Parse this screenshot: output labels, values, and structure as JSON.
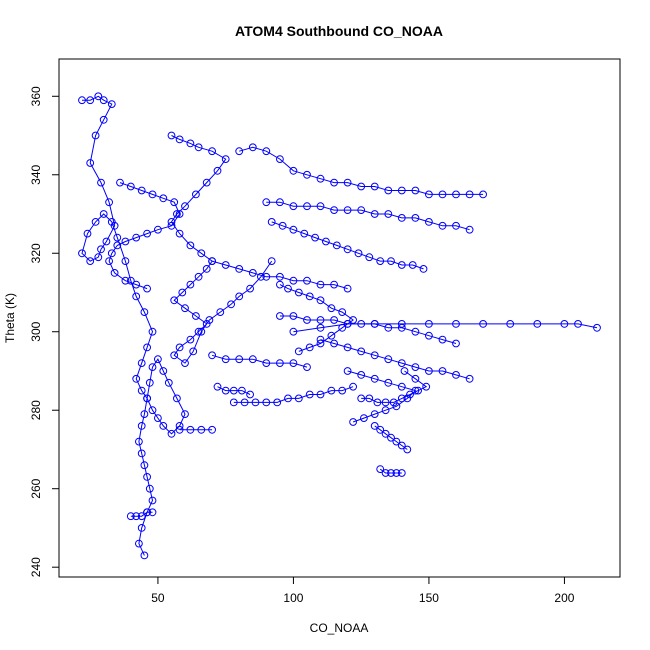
{
  "chart_data": {
    "type": "scatter",
    "title": "ATOM4 Southbound CO_NOAA",
    "xlabel": "CO_NOAA",
    "ylabel": "Theta (K)",
    "xlim": [
      13.5,
      220.5
    ],
    "ylim": [
      237.5,
      369.5
    ],
    "xticks": [
      50,
      100,
      150,
      200
    ],
    "yticks": [
      240,
      260,
      280,
      300,
      320,
      340,
      360
    ],
    "grid": false,
    "legend": "none",
    "marker": "open-circle",
    "lines": true,
    "color": "#0000ff",
    "series": [
      {
        "x": [
          22,
          25,
          28,
          30,
          33,
          30,
          27,
          25,
          29,
          32,
          34,
          31,
          29,
          28,
          25,
          22,
          24,
          27,
          30,
          33,
          35,
          38,
          40,
          42,
          45,
          48,
          46,
          44,
          42,
          44,
          46,
          48,
          50,
          52,
          55,
          58,
          60,
          57,
          54,
          52,
          50,
          48,
          47,
          46,
          45,
          44,
          43,
          44,
          45,
          46,
          47,
          48,
          46,
          44,
          43,
          45
        ],
        "y": [
          359,
          359,
          360,
          359,
          358,
          354,
          350,
          343,
          338,
          333,
          327,
          323,
          321,
          319,
          318,
          320,
          325,
          328,
          330,
          328,
          324,
          318,
          313,
          309,
          305,
          300,
          296,
          292,
          288,
          285,
          283,
          280,
          278,
          276,
          274,
          276,
          279,
          283,
          287,
          290,
          293,
          291,
          287,
          283,
          279,
          276,
          272,
          269,
          266,
          263,
          260,
          257,
          254,
          250,
          246,
          243
        ]
      },
      {
        "x": [
          55,
          58,
          62,
          65,
          70,
          75,
          72,
          68,
          64,
          60,
          57,
          55,
          58,
          62,
          66,
          70,
          68,
          65,
          62,
          59,
          56,
          60,
          64,
          68,
          65,
          62,
          58,
          56,
          60,
          63,
          66,
          69,
          73,
          77,
          80,
          84,
          88,
          92
        ],
        "y": [
          350,
          349,
          348,
          347,
          346,
          344,
          341,
          338,
          335,
          332,
          330,
          328,
          325,
          322,
          320,
          318,
          316,
          314,
          312,
          310,
          308,
          306,
          304,
          302,
          300,
          298,
          296,
          294,
          292,
          295,
          300,
          303,
          305,
          307,
          309,
          311,
          314,
          318
        ]
      },
      {
        "x": [
          36,
          40,
          44,
          48,
          52,
          56,
          58,
          55,
          50,
          46,
          42,
          38,
          35,
          33,
          32,
          34,
          38,
          42,
          46
        ],
        "y": [
          338,
          337,
          336,
          335,
          334,
          333,
          330,
          327,
          326,
          325,
          324,
          323,
          322,
          320,
          318,
          315,
          313,
          312,
          311
        ]
      },
      {
        "x": [
          80,
          85,
          90,
          95,
          100,
          105,
          110,
          115,
          120,
          125,
          130,
          135,
          140,
          145,
          150,
          155,
          160,
          165,
          170
        ],
        "y": [
          346,
          347,
          346,
          344,
          341,
          340,
          339,
          338,
          338,
          337,
          337,
          336,
          336,
          336,
          335,
          335,
          335,
          335,
          335
        ]
      },
      {
        "x": [
          90,
          95,
          100,
          105,
          110,
          115,
          120,
          125,
          130,
          135,
          140,
          145,
          150,
          155,
          160,
          165
        ],
        "y": [
          333,
          333,
          332,
          332,
          332,
          331,
          331,
          331,
          330,
          330,
          329,
          329,
          328,
          327,
          327,
          326
        ]
      },
      {
        "x": [
          92,
          96,
          100,
          104,
          108,
          112,
          116,
          120,
          124,
          128,
          132,
          136,
          140,
          144,
          148
        ],
        "y": [
          328,
          327,
          326,
          325,
          324,
          323,
          322,
          321,
          320,
          319,
          318,
          318,
          317,
          317,
          316
        ]
      },
      {
        "x": [
          95,
          98,
          102,
          106,
          110,
          114,
          118,
          122,
          118,
          114,
          110,
          106,
          102
        ],
        "y": [
          312,
          311,
          310,
          309,
          308,
          306,
          305,
          303,
          301,
          299,
          297,
          296,
          295
        ]
      },
      {
        "x": [
          100,
          110,
          120,
          130,
          140,
          150,
          160,
          170,
          180,
          190,
          200,
          205,
          212
        ],
        "y": [
          300,
          301,
          302,
          302,
          302,
          302,
          302,
          302,
          302,
          302,
          302,
          302,
          301
        ]
      },
      {
        "x": [
          95,
          100,
          105,
          110,
          115,
          120,
          125,
          130,
          135,
          140,
          145,
          150,
          155,
          160
        ],
        "y": [
          304,
          304,
          303,
          303,
          303,
          302,
          302,
          302,
          301,
          301,
          300,
          299,
          298,
          297
        ]
      },
      {
        "x": [
          110,
          115,
          120,
          125,
          130,
          135,
          140,
          145,
          150,
          155,
          160,
          165
        ],
        "y": [
          298,
          297,
          296,
          295,
          294,
          293,
          292,
          291,
          290,
          290,
          289,
          288
        ]
      },
      {
        "x": [
          120,
          125,
          130,
          135,
          140,
          145,
          142,
          138,
          134,
          130,
          126,
          122
        ],
        "y": [
          290,
          289,
          288,
          287,
          286,
          285,
          283,
          281,
          280,
          279,
          278,
          277
        ]
      },
      {
        "x": [
          125,
          128,
          131,
          134,
          137,
          140,
          143,
          146,
          149,
          145,
          141
        ],
        "y": [
          283,
          283,
          282,
          282,
          282,
          283,
          284,
          285,
          286,
          288,
          290
        ]
      },
      {
        "x": [
          130,
          132,
          134,
          136,
          138,
          140,
          142
        ],
        "y": [
          276,
          275,
          274,
          273,
          272,
          271,
          270
        ]
      },
      {
        "x": [
          132,
          134,
          136,
          138,
          140
        ],
        "y": [
          265,
          264,
          264,
          264,
          264
        ]
      },
      {
        "x": [
          78,
          82,
          86,
          90,
          94,
          98,
          102,
          106,
          110,
          114,
          118,
          122
        ],
        "y": [
          282,
          282,
          282,
          282,
          282,
          283,
          283,
          284,
          284,
          285,
          285,
          286
        ]
      },
      {
        "x": [
          70,
          75,
          80,
          85,
          90,
          95,
          100,
          105
        ],
        "y": [
          294,
          293,
          293,
          293,
          292,
          292,
          292,
          291
        ]
      },
      {
        "x": [
          72,
          75,
          78,
          81,
          84
        ],
        "y": [
          286,
          285,
          285,
          285,
          284
        ]
      },
      {
        "x": [
          40,
          42,
          44,
          46,
          48
        ],
        "y": [
          253,
          253,
          253,
          254,
          254
        ]
      },
      {
        "x": [
          58,
          62,
          66,
          70
        ],
        "y": [
          275,
          275,
          275,
          275
        ]
      },
      {
        "x": [
          70,
          75,
          80,
          85,
          90,
          95,
          100,
          105,
          110,
          115,
          120
        ],
        "y": [
          318,
          317,
          316,
          315,
          314,
          314,
          313,
          313,
          312,
          312,
          311
        ]
      }
    ]
  }
}
